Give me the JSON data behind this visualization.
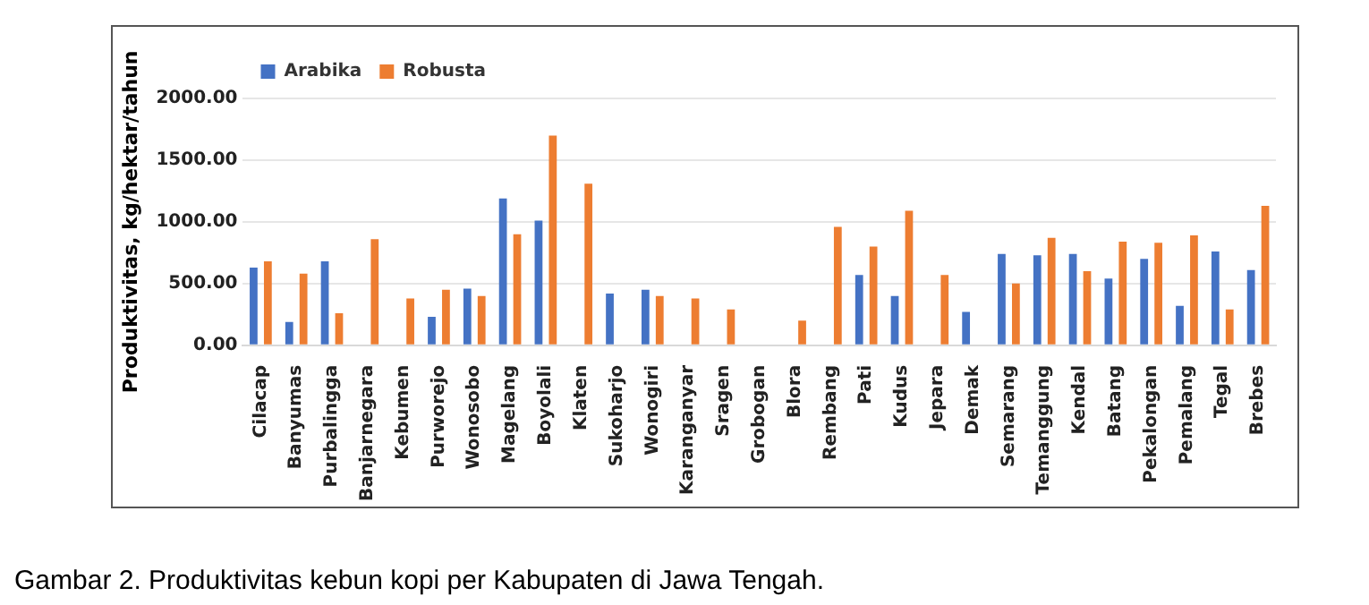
{
  "chart_data": {
    "type": "bar",
    "ylabel": "Produktivitas, kg/hektar/tahun",
    "categories": [
      "Cilacap",
      "Banyumas",
      "Purbalingga",
      "Banjarnegara",
      "Kebumen",
      "Purworejo",
      "Wonosobo",
      "Magelang",
      "Boyolali",
      "Klaten",
      "Sukoharjo",
      "Wonogiri",
      "Karanganyar",
      "Sragen",
      "Grobogan",
      "Blora",
      "Rembang",
      "Pati",
      "Kudus",
      "Jepara",
      "Demak",
      "Semarang",
      "Temanggung",
      "Kendal",
      "Batang",
      "Pekalongan",
      "Pemalang",
      "Tegal",
      "Brebes"
    ],
    "series": [
      {
        "name": "Arabika",
        "color": "#4472c4",
        "values": [
          630,
          190,
          680,
          null,
          null,
          230,
          460,
          1190,
          1010,
          null,
          420,
          450,
          null,
          null,
          null,
          null,
          null,
          570,
          400,
          null,
          270,
          740,
          730,
          740,
          540,
          700,
          320,
          760,
          610
        ]
      },
      {
        "name": "Robusta",
        "color": "#ed7d31",
        "values": [
          680,
          580,
          260,
          860,
          380,
          450,
          400,
          900,
          1700,
          1310,
          null,
          400,
          380,
          290,
          null,
          200,
          960,
          800,
          1090,
          570,
          null,
          500,
          870,
          600,
          840,
          830,
          890,
          290,
          1130
        ]
      }
    ],
    "ylim": [
      0,
      2000
    ],
    "yticks": [
      {
        "value": 0,
        "label": "0.00"
      },
      {
        "value": 500,
        "label": "500.00"
      },
      {
        "value": 1000,
        "label": "1000.00"
      },
      {
        "value": 1500,
        "label": "1500.00"
      },
      {
        "value": 2000,
        "label": "2000.00"
      }
    ],
    "grid": "y",
    "legend": "top left",
    "annotations": [
      "Gambar 2. Produktivitas kebun kopi per Kabupaten di Jawa Tengah."
    ]
  }
}
